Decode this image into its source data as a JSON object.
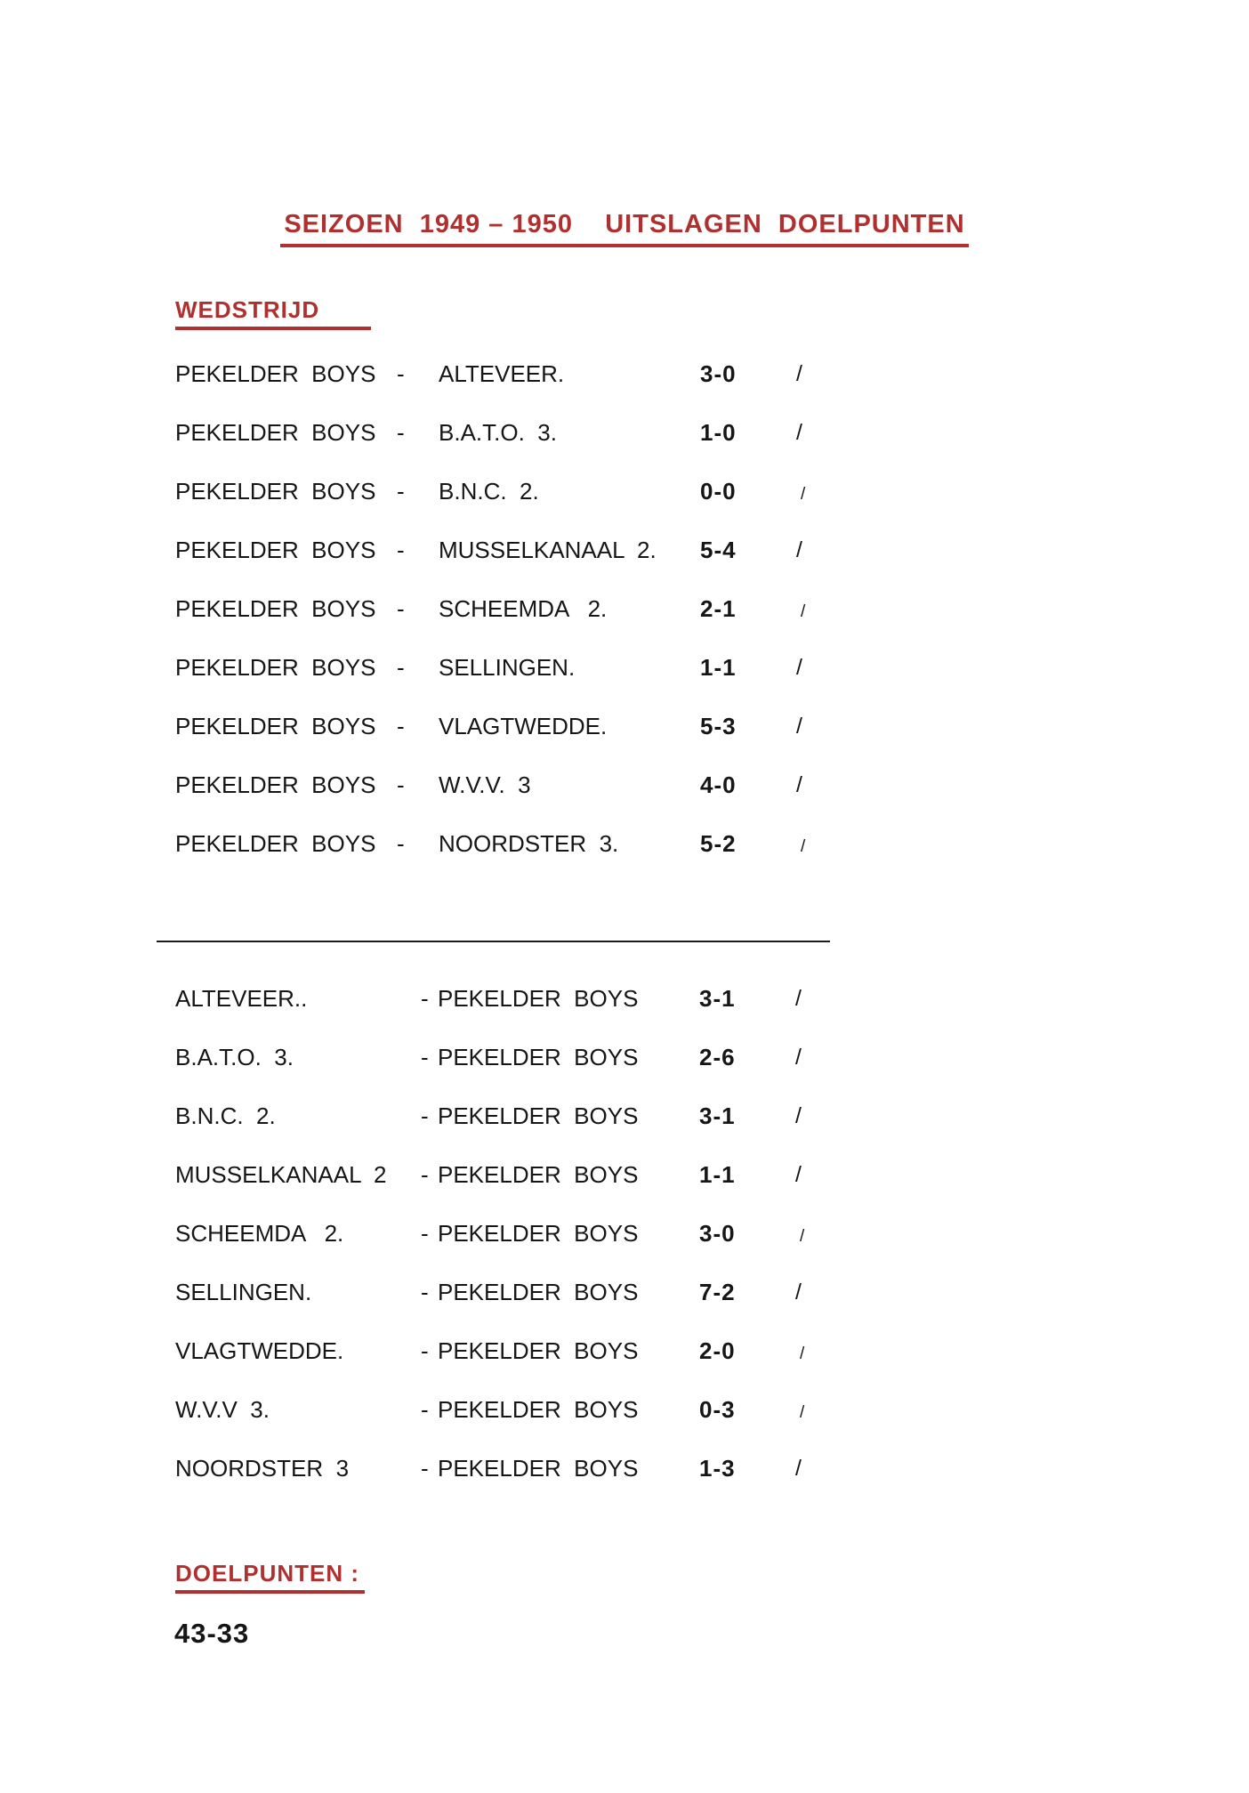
{
  "document": {
    "title": "SEIZOEN  1949 – 1950    UITSLAGEN  DOELPUNTEN",
    "matches_heading": "WEDSTRIJD",
    "goals_heading": "DOELPUNTEN :",
    "goals_total": "43-33"
  },
  "symbols": {
    "dash": "-",
    "slash": "/"
  },
  "home_matches": [
    {
      "home": "PEKELDER  BOYS",
      "away": "ALTEVEER.",
      "score": "3-0"
    },
    {
      "home": "PEKELDER  BOYS",
      "away": "B.A.T.O.  3.",
      "score": "1-0"
    },
    {
      "home": "PEKELDER  BOYS",
      "away": "B.N.C.  2.",
      "score": "0-0"
    },
    {
      "home": "PEKELDER  BOYS",
      "away": "MUSSELKANAAL  2.",
      "score": "5-4"
    },
    {
      "home": "PEKELDER  BOYS",
      "away": "SCHEEMDA   2.",
      "score": "2-1"
    },
    {
      "home": "PEKELDER  BOYS",
      "away": "SELLINGEN.",
      "score": "1-1"
    },
    {
      "home": "PEKELDER  BOYS",
      "away": "VLAGTWEDDE.",
      "score": "5-3"
    },
    {
      "home": "PEKELDER  BOYS",
      "away": "W.V.V.  3",
      "score": "4-0"
    },
    {
      "home": "PEKELDER  BOYS",
      "away": "NOORDSTER  3.",
      "score": "5-2"
    }
  ],
  "away_matches": [
    {
      "home": "ALTEVEER..",
      "away": "PEKELDER  BOYS",
      "score": "3-1"
    },
    {
      "home": "B.A.T.O.  3.",
      "away": "PEKELDER  BOYS",
      "score": "2-6"
    },
    {
      "home": "B.N.C.  2.",
      "away": "PEKELDER  BOYS",
      "score": "3-1"
    },
    {
      "home": "MUSSELKANAAL  2",
      "away": "PEKELDER  BOYS",
      "score": "1-1"
    },
    {
      "home": "SCHEEMDA   2.",
      "away": "PEKELDER  BOYS",
      "score": "3-0"
    },
    {
      "home": "SELLINGEN.",
      "away": "PEKELDER  BOYS",
      "score": "7-2"
    },
    {
      "home": "VLAGTWEDDE.",
      "away": "PEKELDER  BOYS",
      "score": "2-0"
    },
    {
      "home": "W.V.V  3.",
      "away": "PEKELDER  BOYS",
      "score": "0-3"
    },
    {
      "home": "NOORDSTER  3",
      "away": "PEKELDER  BOYS",
      "score": "1-3"
    }
  ],
  "colors": {
    "accent_red": "#b02f2f",
    "text_black": "#161616"
  }
}
